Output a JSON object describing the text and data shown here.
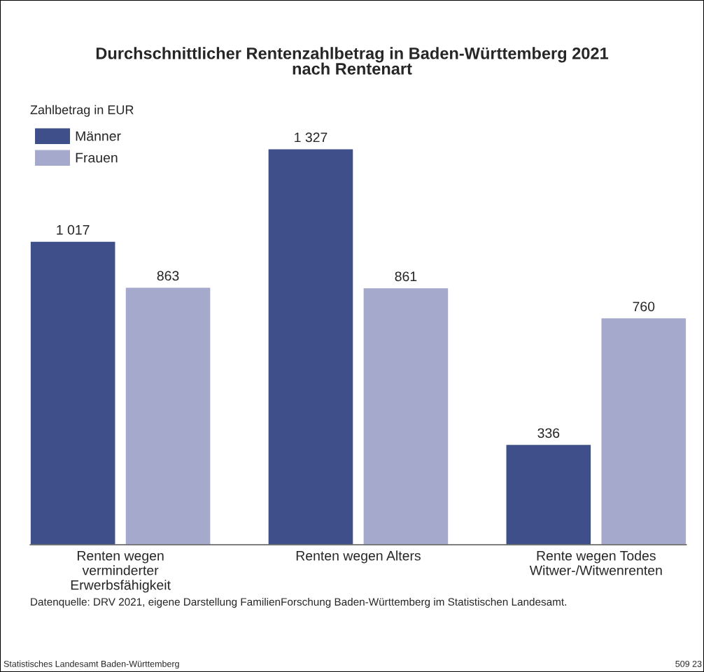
{
  "chart_data": {
    "type": "bar",
    "title": "Durchschnittlicher Rentenzahlbetrag in Baden-Württemberg 2021\nnach Rentenart",
    "ylabel": "Zahlbetrag in EUR",
    "categories": [
      "Renten wegen\nverminderter\nErwerbsfähigkeit",
      "Renten wegen Alters",
      "Rente wegen Todes\nWitwer-/Witwenrenten"
    ],
    "series": [
      {
        "name": "Männer",
        "color": "#3f4f8a",
        "values": [
          1017,
          1327,
          336
        ],
        "value_labels": [
          "1 017",
          "1 327",
          "336"
        ]
      },
      {
        "name": "Frauen",
        "color": "#a5a9cc",
        "values": [
          863,
          861,
          760
        ],
        "value_labels": [
          "863",
          "861",
          "760"
        ]
      }
    ],
    "legend": "top left",
    "grid": false,
    "tick_labels": "x",
    "annotations": [
      "Datenquelle: DRV 2021, eigene Darstellung FamilienForschung Baden-Württemberg im Statistischen Landesamt.",
      "Statistisches Landesamt Baden-Württemberg",
      "509 23"
    ]
  }
}
